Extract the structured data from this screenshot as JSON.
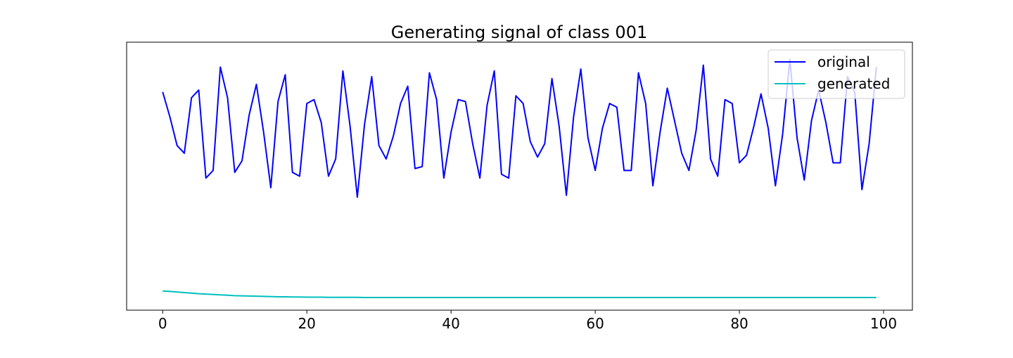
{
  "chart_data": {
    "type": "line",
    "title": "Generating signal of class 001",
    "xlabel": "",
    "ylabel": "",
    "xlim": [
      -5,
      104
    ],
    "ylim": [
      -0.15,
      1.25
    ],
    "x_ticks": [
      0,
      20,
      40,
      60,
      80,
      100
    ],
    "y_ticks_shown": false,
    "grid": false,
    "legend_position": "top-right",
    "series": [
      {
        "name": "original",
        "color": "#0000ff",
        "x": [
          0,
          1,
          2,
          3,
          4,
          5,
          6,
          7,
          8,
          9,
          10,
          11,
          12,
          13,
          14,
          15,
          16,
          17,
          18,
          19,
          20,
          21,
          22,
          23,
          24,
          25,
          26,
          27,
          28,
          29,
          30,
          31,
          32,
          33,
          34,
          35,
          36,
          37,
          38,
          39,
          40,
          41,
          42,
          43,
          44,
          45,
          46,
          47,
          48,
          49,
          50,
          51,
          52,
          53,
          54,
          55,
          56,
          57,
          58,
          59,
          60,
          61,
          62,
          63,
          64,
          65,
          66,
          67,
          68,
          69,
          70,
          71,
          72,
          73,
          74,
          75,
          76,
          77,
          78,
          79,
          80,
          81,
          82,
          83,
          84,
          85,
          86,
          87,
          88,
          89,
          90,
          91,
          92,
          93,
          94,
          95,
          96,
          97,
          98,
          99
        ],
        "values": [
          0.99,
          0.86,
          0.71,
          0.67,
          0.96,
          1.0,
          0.54,
          0.58,
          1.12,
          0.96,
          0.57,
          0.63,
          0.87,
          1.03,
          0.78,
          0.49,
          0.94,
          1.08,
          0.57,
          0.55,
          0.93,
          0.95,
          0.83,
          0.55,
          0.64,
          1.1,
          0.81,
          0.44,
          0.82,
          1.07,
          0.71,
          0.64,
          0.76,
          0.93,
          1.02,
          0.59,
          0.6,
          1.09,
          0.95,
          0.54,
          0.78,
          0.95,
          0.94,
          0.72,
          0.54,
          0.92,
          1.1,
          0.56,
          0.54,
          0.97,
          0.93,
          0.73,
          0.65,
          0.72,
          1.06,
          0.81,
          0.45,
          0.86,
          1.11,
          0.75,
          0.58,
          0.8,
          0.93,
          0.91,
          0.58,
          0.58,
          1.09,
          0.93,
          0.5,
          0.78,
          1.01,
          0.84,
          0.67,
          0.58,
          0.79,
          1.13,
          0.64,
          0.55,
          0.95,
          0.93,
          0.62,
          0.66,
          0.81,
          0.98,
          0.8,
          0.5,
          0.77,
          1.16,
          0.75,
          0.53,
          0.84,
          1.0,
          0.83,
          0.62,
          0.62,
          1.07,
          0.99,
          0.48,
          0.72,
          1.12
        ]
      },
      {
        "name": "generated",
        "color": "#00bfbf",
        "x": [
          0,
          1,
          2,
          3,
          4,
          5,
          6,
          7,
          8,
          9,
          10,
          11,
          12,
          13,
          14,
          15,
          16,
          17,
          18,
          19,
          20,
          21,
          22,
          23,
          24,
          25,
          26,
          27,
          28,
          29,
          30,
          31,
          32,
          33,
          34,
          35,
          36,
          37,
          38,
          39,
          40,
          41,
          42,
          43,
          44,
          45,
          46,
          47,
          48,
          49,
          50,
          51,
          52,
          53,
          54,
          55,
          56,
          57,
          58,
          59,
          60,
          61,
          62,
          63,
          64,
          65,
          66,
          67,
          68,
          69,
          70,
          71,
          72,
          73,
          74,
          75,
          76,
          77,
          78,
          79,
          80,
          81,
          82,
          83,
          84,
          85,
          86,
          87,
          88,
          89,
          90,
          91,
          92,
          93,
          94,
          95,
          96,
          97,
          98,
          99
        ],
        "values": [
          -0.05,
          -0.052,
          -0.055,
          -0.058,
          -0.061,
          -0.064,
          -0.066,
          -0.068,
          -0.07,
          -0.072,
          -0.074,
          -0.075,
          -0.076,
          -0.077,
          -0.078,
          -0.079,
          -0.08,
          -0.08,
          -0.081,
          -0.081,
          -0.082,
          -0.082,
          -0.082,
          -0.083,
          -0.083,
          -0.083,
          -0.083,
          -0.083,
          -0.084,
          -0.084,
          -0.084,
          -0.084,
          -0.084,
          -0.084,
          -0.084,
          -0.084,
          -0.084,
          -0.084,
          -0.084,
          -0.084,
          -0.084,
          -0.084,
          -0.084,
          -0.084,
          -0.084,
          -0.084,
          -0.084,
          -0.084,
          -0.084,
          -0.084,
          -0.084,
          -0.084,
          -0.084,
          -0.084,
          -0.084,
          -0.084,
          -0.084,
          -0.084,
          -0.084,
          -0.084,
          -0.084,
          -0.084,
          -0.084,
          -0.084,
          -0.084,
          -0.084,
          -0.084,
          -0.084,
          -0.084,
          -0.084,
          -0.084,
          -0.084,
          -0.084,
          -0.084,
          -0.084,
          -0.084,
          -0.084,
          -0.084,
          -0.084,
          -0.084,
          -0.084,
          -0.084,
          -0.084,
          -0.084,
          -0.084,
          -0.084,
          -0.084,
          -0.084,
          -0.084,
          -0.084,
          -0.084,
          -0.084,
          -0.084,
          -0.084,
          -0.084,
          -0.084,
          -0.084,
          -0.084,
          -0.084,
          -0.084
        ]
      }
    ]
  }
}
